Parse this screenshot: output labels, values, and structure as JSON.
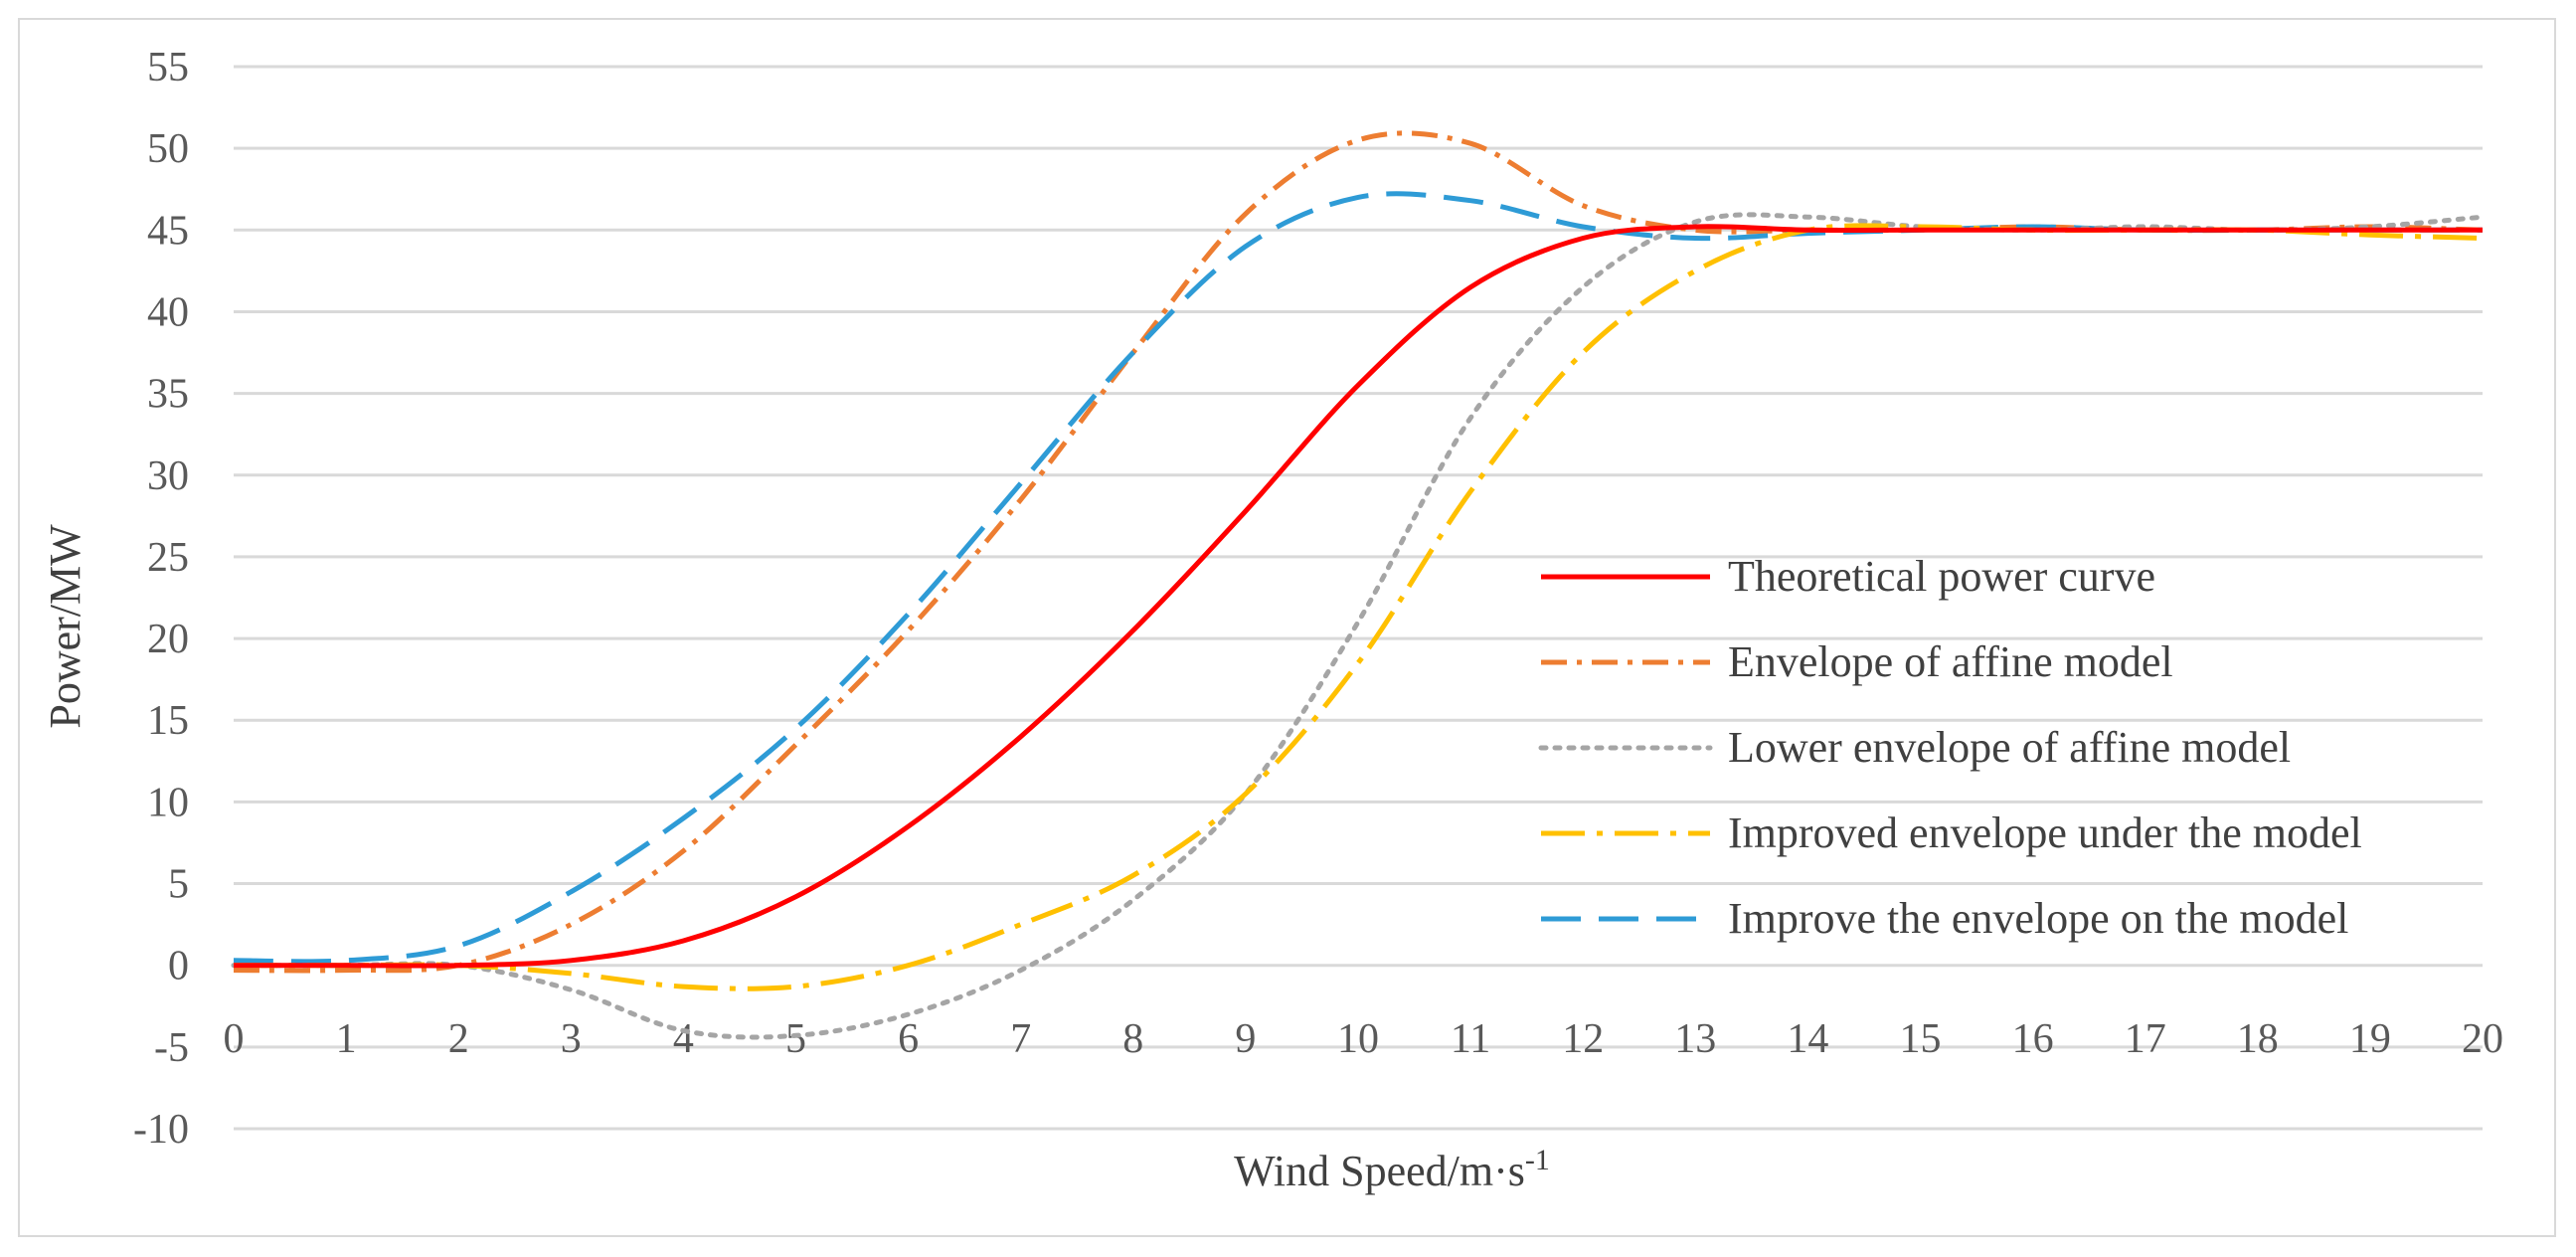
{
  "chart_data": {
    "type": "line",
    "title": "",
    "xlabel": "Wind Speed/m·s",
    "xlabel_superscript": "-1",
    "ylabel": "Power/MW",
    "xlim": [
      0,
      20
    ],
    "ylim": [
      -10,
      55
    ],
    "x_ticks": [
      "0",
      "1",
      "2",
      "3",
      "4",
      "5",
      "6",
      "7",
      "8",
      "9",
      "10",
      "11",
      "12",
      "13",
      "14",
      "15",
      "16",
      "17",
      "18",
      "19",
      "20"
    ],
    "y_ticks": [
      "55",
      "50",
      "45",
      "40",
      "35",
      "30",
      "25",
      "20",
      "15",
      "10",
      "5",
      "0",
      "-5",
      "-10"
    ],
    "grid": true,
    "legend_position": "center-right",
    "x": [
      0,
      1,
      2,
      3,
      4,
      5,
      6,
      7,
      8,
      9,
      10,
      11,
      12,
      13,
      14,
      15,
      16,
      17,
      18,
      19,
      20
    ],
    "series": [
      {
        "name": "Theoretical power curve",
        "color": "#ff0000",
        "dash": "solid",
        "values": [
          0,
          0,
          0,
          0.3,
          1.5,
          4.2,
          8.5,
          14,
          20.5,
          27.8,
          35.5,
          41.5,
          44.5,
          45.2,
          45,
          45,
          45,
          45,
          45,
          45,
          45
        ]
      },
      {
        "name": "Envelope of affine model",
        "color": "#ed7d31",
        "dash": "dashdot",
        "values": [
          -0.3,
          -0.3,
          0,
          2.5,
          7,
          13.5,
          20.5,
          28.5,
          37.5,
          46,
          50.5,
          50.3,
          46.5,
          45,
          45,
          45,
          45.2,
          45,
          45,
          45.2,
          45
        ]
      },
      {
        "name": "Lower envelope of affine model",
        "color": "#a5a5a5",
        "dash": "dotted",
        "values": [
          0,
          0,
          0,
          -1.5,
          -4,
          -4.3,
          -3,
          -0.3,
          4,
          10.5,
          21,
          33.5,
          41.5,
          45.5,
          45.8,
          45.2,
          45,
          45.2,
          45,
          45.2,
          45.8
        ]
      },
      {
        "name": " Improved envelope under the model",
        "color": "#ffc000",
        "dash": "longdashdot",
        "values": [
          0,
          0,
          0,
          -0.5,
          -1.3,
          -1.3,
          0,
          2.5,
          5.5,
          10.5,
          18.5,
          29,
          37.5,
          42.5,
          45,
          45.2,
          45,
          45,
          45,
          44.7,
          44.5
        ]
      },
      {
        "name": "Improve the envelope on the model",
        "color": "#2e9bd6",
        "dash": "dashed",
        "values": [
          0.3,
          0.3,
          1.2,
          4.5,
          9,
          14.5,
          21.5,
          29.5,
          37.5,
          44,
          47,
          46.8,
          45.2,
          44.5,
          44.8,
          45,
          45.2,
          45,
          45,
          45,
          45
        ]
      }
    ]
  }
}
